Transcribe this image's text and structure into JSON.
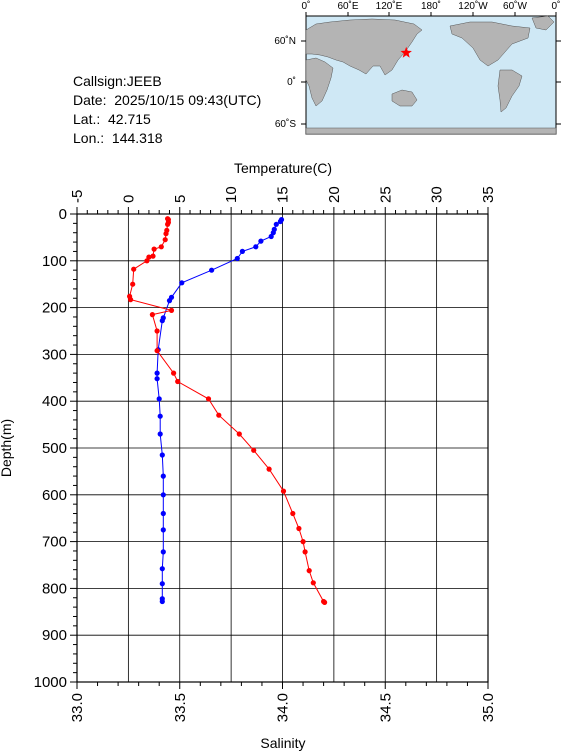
{
  "info": {
    "callsign": "Callsign:JEEB",
    "date": "Date:  2025/10/15 09:43(UTC)",
    "lat": "Lat.:  42.715",
    "lon": "Lon.:  144.318"
  },
  "map": {
    "lon_labels": [
      "0˚",
      "60˚E",
      "120˚E",
      "180˚",
      "120˚W",
      "60˚W",
      "0˚"
    ],
    "lat_labels": [
      "60˚N",
      "0˚",
      "60˚S"
    ],
    "station_marker": {
      "lon": 144.318,
      "lat": 42.715
    },
    "colors": {
      "land": "#b4b4b4",
      "ocean": "#cfe8f5",
      "marker": "#ff0000"
    }
  },
  "chart_data": {
    "type": "line",
    "y_axis": {
      "label": "Depth(m)",
      "range": [
        0,
        1000
      ],
      "ticks": [
        0,
        100,
        200,
        300,
        400,
        500,
        600,
        700,
        800,
        900,
        1000
      ]
    },
    "top_axis": {
      "label": "Temperature(C)",
      "range": [
        -5,
        35
      ],
      "ticks": [
        -5,
        0,
        5,
        10,
        15,
        20,
        25,
        30,
        35
      ]
    },
    "bottom_axis": {
      "label": "Salinity",
      "range": [
        33.0,
        35.0
      ],
      "ticks": [
        "33.0",
        "33.5",
        "34.0",
        "34.5",
        "35.0"
      ]
    },
    "grid": true,
    "series": [
      {
        "color": "#0000ff",
        "axis": "temperature",
        "points": [
          [
            14.9,
            12
          ],
          [
            14.8,
            16
          ],
          [
            14.4,
            22
          ],
          [
            14.2,
            33
          ],
          [
            14.1,
            40
          ],
          [
            13.9,
            48
          ],
          [
            12.9,
            58
          ],
          [
            12.4,
            70
          ],
          [
            11.1,
            80
          ],
          [
            10.6,
            95
          ],
          [
            8.1,
            120
          ],
          [
            5.2,
            147
          ],
          [
            4.2,
            178
          ],
          [
            4.0,
            185
          ],
          [
            3.4,
            222
          ],
          [
            3.3,
            228
          ],
          [
            2.9,
            290
          ],
          [
            2.8,
            340
          ],
          [
            2.8,
            352
          ],
          [
            3.0,
            395
          ],
          [
            3.1,
            432
          ],
          [
            3.1,
            470
          ],
          [
            3.3,
            515
          ],
          [
            3.4,
            560
          ],
          [
            3.4,
            600
          ],
          [
            3.4,
            640
          ],
          [
            3.4,
            675
          ],
          [
            3.4,
            722
          ],
          [
            3.3,
            758
          ],
          [
            3.3,
            790
          ],
          [
            3.3,
            822
          ],
          [
            3.3,
            828
          ]
        ]
      },
      {
        "color": "#ff0000",
        "axis": "salinity",
        "points": [
          [
            33.441,
            10
          ],
          [
            33.445,
            12
          ],
          [
            33.445,
            18
          ],
          [
            33.441,
            22
          ],
          [
            33.437,
            35
          ],
          [
            33.433,
            42
          ],
          [
            33.429,
            55
          ],
          [
            33.41,
            70
          ],
          [
            33.375,
            75
          ],
          [
            33.37,
            90
          ],
          [
            33.35,
            92
          ],
          [
            33.34,
            100
          ],
          [
            33.276,
            118
          ],
          [
            33.271,
            150
          ],
          [
            33.256,
            176
          ],
          [
            33.261,
            183
          ],
          [
            33.46,
            206
          ],
          [
            33.367,
            215
          ],
          [
            33.39,
            250
          ],
          [
            33.39,
            292
          ],
          [
            33.47,
            340
          ],
          [
            33.49,
            358
          ],
          [
            33.64,
            395
          ],
          [
            33.69,
            430
          ],
          [
            33.79,
            470
          ],
          [
            33.86,
            505
          ],
          [
            33.935,
            545
          ],
          [
            34.005,
            592
          ],
          [
            34.05,
            640
          ],
          [
            34.08,
            672
          ],
          [
            34.1,
            700
          ],
          [
            34.11,
            722
          ],
          [
            34.13,
            762
          ],
          [
            34.15,
            788
          ],
          [
            34.2,
            828
          ],
          [
            34.205,
            830
          ]
        ]
      }
    ]
  }
}
